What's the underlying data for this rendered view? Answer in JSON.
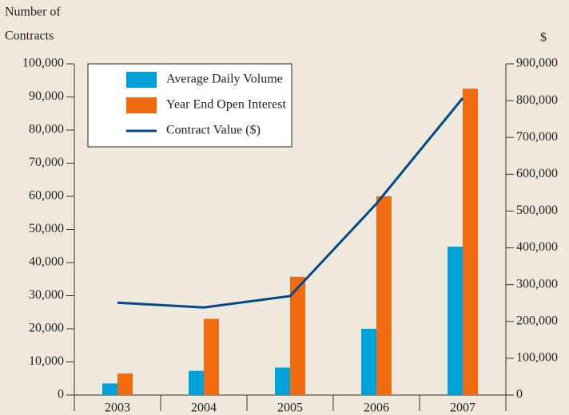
{
  "chart_data": {
    "type": "bar-line",
    "y_label": [
      "Number of",
      "Contracts"
    ],
    "y2_label": "$",
    "categories": [
      "2003",
      "2004",
      "2005",
      "2006",
      "2007"
    ],
    "series": [
      {
        "name": "Average Daily Volume",
        "color": "#00a0d8",
        "type": "bar",
        "values": [
          3500,
          7300,
          8300,
          20000,
          44800
        ]
      },
      {
        "name": "Year End Open Interest",
        "color": "#f26a10",
        "type": "bar",
        "values": [
          6500,
          23000,
          35700,
          60000,
          92500
        ]
      },
      {
        "name": "Contract Value ($)",
        "color": "#004a87",
        "type": "line",
        "axis": "y2",
        "values": [
          251000,
          238000,
          269000,
          520000,
          807000
        ]
      }
    ],
    "ylim": [
      0,
      100000
    ],
    "yticks": [
      0,
      {
        "value": 10000,
        "label": "10,000"
      },
      {
        "value": 20000,
        "label": "20,000"
      },
      {
        "value": 30000,
        "label": "30,000"
      },
      {
        "value": 40000,
        "label": "40,000"
      },
      {
        "value": 50000,
        "label": "50,000"
      },
      {
        "value": 60000,
        "label": "60,000"
      },
      {
        "value": 70000,
        "label": "70,000"
      },
      {
        "value": 80000,
        "label": "80,000"
      },
      {
        "value": 90000,
        "label": "90,000"
      },
      {
        "value": 100000,
        "label": "100,000"
      }
    ],
    "y2lim": [
      0,
      900000
    ],
    "y2ticks": [
      0,
      {
        "value": 100000,
        "label": "100,000"
      },
      {
        "value": 200000,
        "label": "200,000"
      },
      {
        "value": 300000,
        "label": "300,000"
      },
      {
        "value": 400000,
        "label": "400,000"
      },
      {
        "value": 500000,
        "label": "500,000"
      },
      {
        "value": 600000,
        "label": "600,000"
      },
      {
        "value": 700000,
        "label": "700,000"
      },
      {
        "value": 800000,
        "label": "800,000"
      },
      {
        "value": 900000,
        "label": "900,000"
      }
    ],
    "legend": "upper left"
  }
}
